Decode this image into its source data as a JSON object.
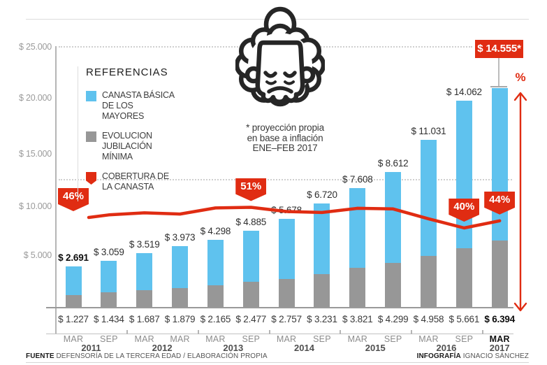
{
  "colors": {
    "blue": "#5fc2ee",
    "gray": "#979797",
    "red": "#e02c12"
  },
  "legend": {
    "title": "REFERENCIAS",
    "items": [
      {
        "label_lines": [
          "CANASTA BÁSICA",
          "DE LOS MAYORES"
        ],
        "color": "#5fc2ee",
        "shape": "square"
      },
      {
        "label_lines": [
          "EVOLUCION",
          "JUBILACIÓN MÍNIMA"
        ],
        "color": "#979797",
        "shape": "square"
      },
      {
        "label_lines": [
          "COBERTURA DE",
          "LA CANASTA"
        ],
        "color": "#e02c12",
        "shape": "ribbon"
      }
    ]
  },
  "footnote_lines": [
    "* proyección propia",
    "en base a inflación",
    "ENE–FEB 2017"
  ],
  "chart_data": {
    "type": "bar",
    "stacked": true,
    "overlay_line": "COBERTURA DE LA CANASTA",
    "y_ticks": [
      "$ 25.000",
      "$ 20.000",
      "$ 15.000",
      "$ 10.000",
      "$ 5.000"
    ],
    "ylim": [
      0,
      26000
    ],
    "x_labels_month": [
      "MAR",
      "SEP",
      "MAR",
      "MAR",
      "MAR",
      "SEP",
      "MAR",
      "SEP",
      "MAR",
      "SEP",
      "MAR",
      "SEP",
      "MAR"
    ],
    "year_groups": [
      {
        "year": "2011",
        "bars": [
          0,
          1
        ]
      },
      {
        "year": "2012",
        "bars": [
          2,
          3
        ]
      },
      {
        "year": "2013",
        "bars": [
          4,
          5
        ]
      },
      {
        "year": "2014",
        "bars": [
          6,
          7
        ]
      },
      {
        "year": "2015",
        "bars": [
          8,
          9
        ]
      },
      {
        "year": "2016",
        "bars": [
          10,
          11
        ]
      },
      {
        "year": "2017",
        "bars": [
          12,
          12
        ]
      }
    ],
    "series": [
      {
        "name": "CANASTA BÁSICA DE LOS MAYORES",
        "color": "#5fc2ee",
        "values": [
          2691,
          3059,
          3519,
          3973,
          4298,
          4885,
          5678,
          6720,
          7608,
          8612,
          11031,
          14062,
          14555
        ]
      },
      {
        "name": "EVOLUCION JUBILACIÓN MÍNIMA",
        "color": "#979797",
        "values": [
          1227,
          1434,
          1687,
          1879,
          2165,
          2477,
          2757,
          3231,
          3821,
          4299,
          4958,
          5661,
          6394
        ]
      },
      {
        "name": "COBERTURA DE LA CANASTA",
        "unit": "%",
        "color": "#e02c12",
        "values": [
          45.6,
          46.9,
          47.9,
          47.3,
          50.4,
          50.7,
          48.6,
          48.1,
          50.2,
          49.9,
          44.9,
          40.3,
          43.9
        ]
      }
    ],
    "canasta_labels": [
      "$ 2.691",
      "$ 3.059",
      "$ 3.519",
      "$ 3.973",
      "$ 4.298",
      "$ 4.885",
      "$ 5.678",
      "$ 6.720",
      "$ 7.608",
      "$ 8.612",
      "$ 11.031",
      "$ 14.062"
    ],
    "projection_label": "$ 14.555*",
    "jubilacion_labels": [
      "$ 1.227",
      "$ 1.434",
      "$ 1.687",
      "$ 1.879",
      "$ 2.165",
      "$ 2.477",
      "$ 2.757",
      "$ 3.231",
      "$ 3.821",
      "$ 4.299",
      "$ 4.958",
      "$ 5.661",
      "$ 6.394"
    ],
    "callouts": [
      {
        "text": "46%",
        "bar": 0
      },
      {
        "text": "51%",
        "bar": 5
      },
      {
        "text": "40%",
        "bar": 11
      },
      {
        "text": "44%",
        "bar": 12
      }
    ],
    "pct_axis_label": "%"
  },
  "footer": {
    "left_bold": "FUENTE",
    "left_rest": " DEFENSORÍA DE LA TERCERA EDAD / ELABORACIÓN PROPIA",
    "right_bold": "INFOGRAFÍA",
    "right_rest": " IGNACIO SÁNCHEZ"
  }
}
